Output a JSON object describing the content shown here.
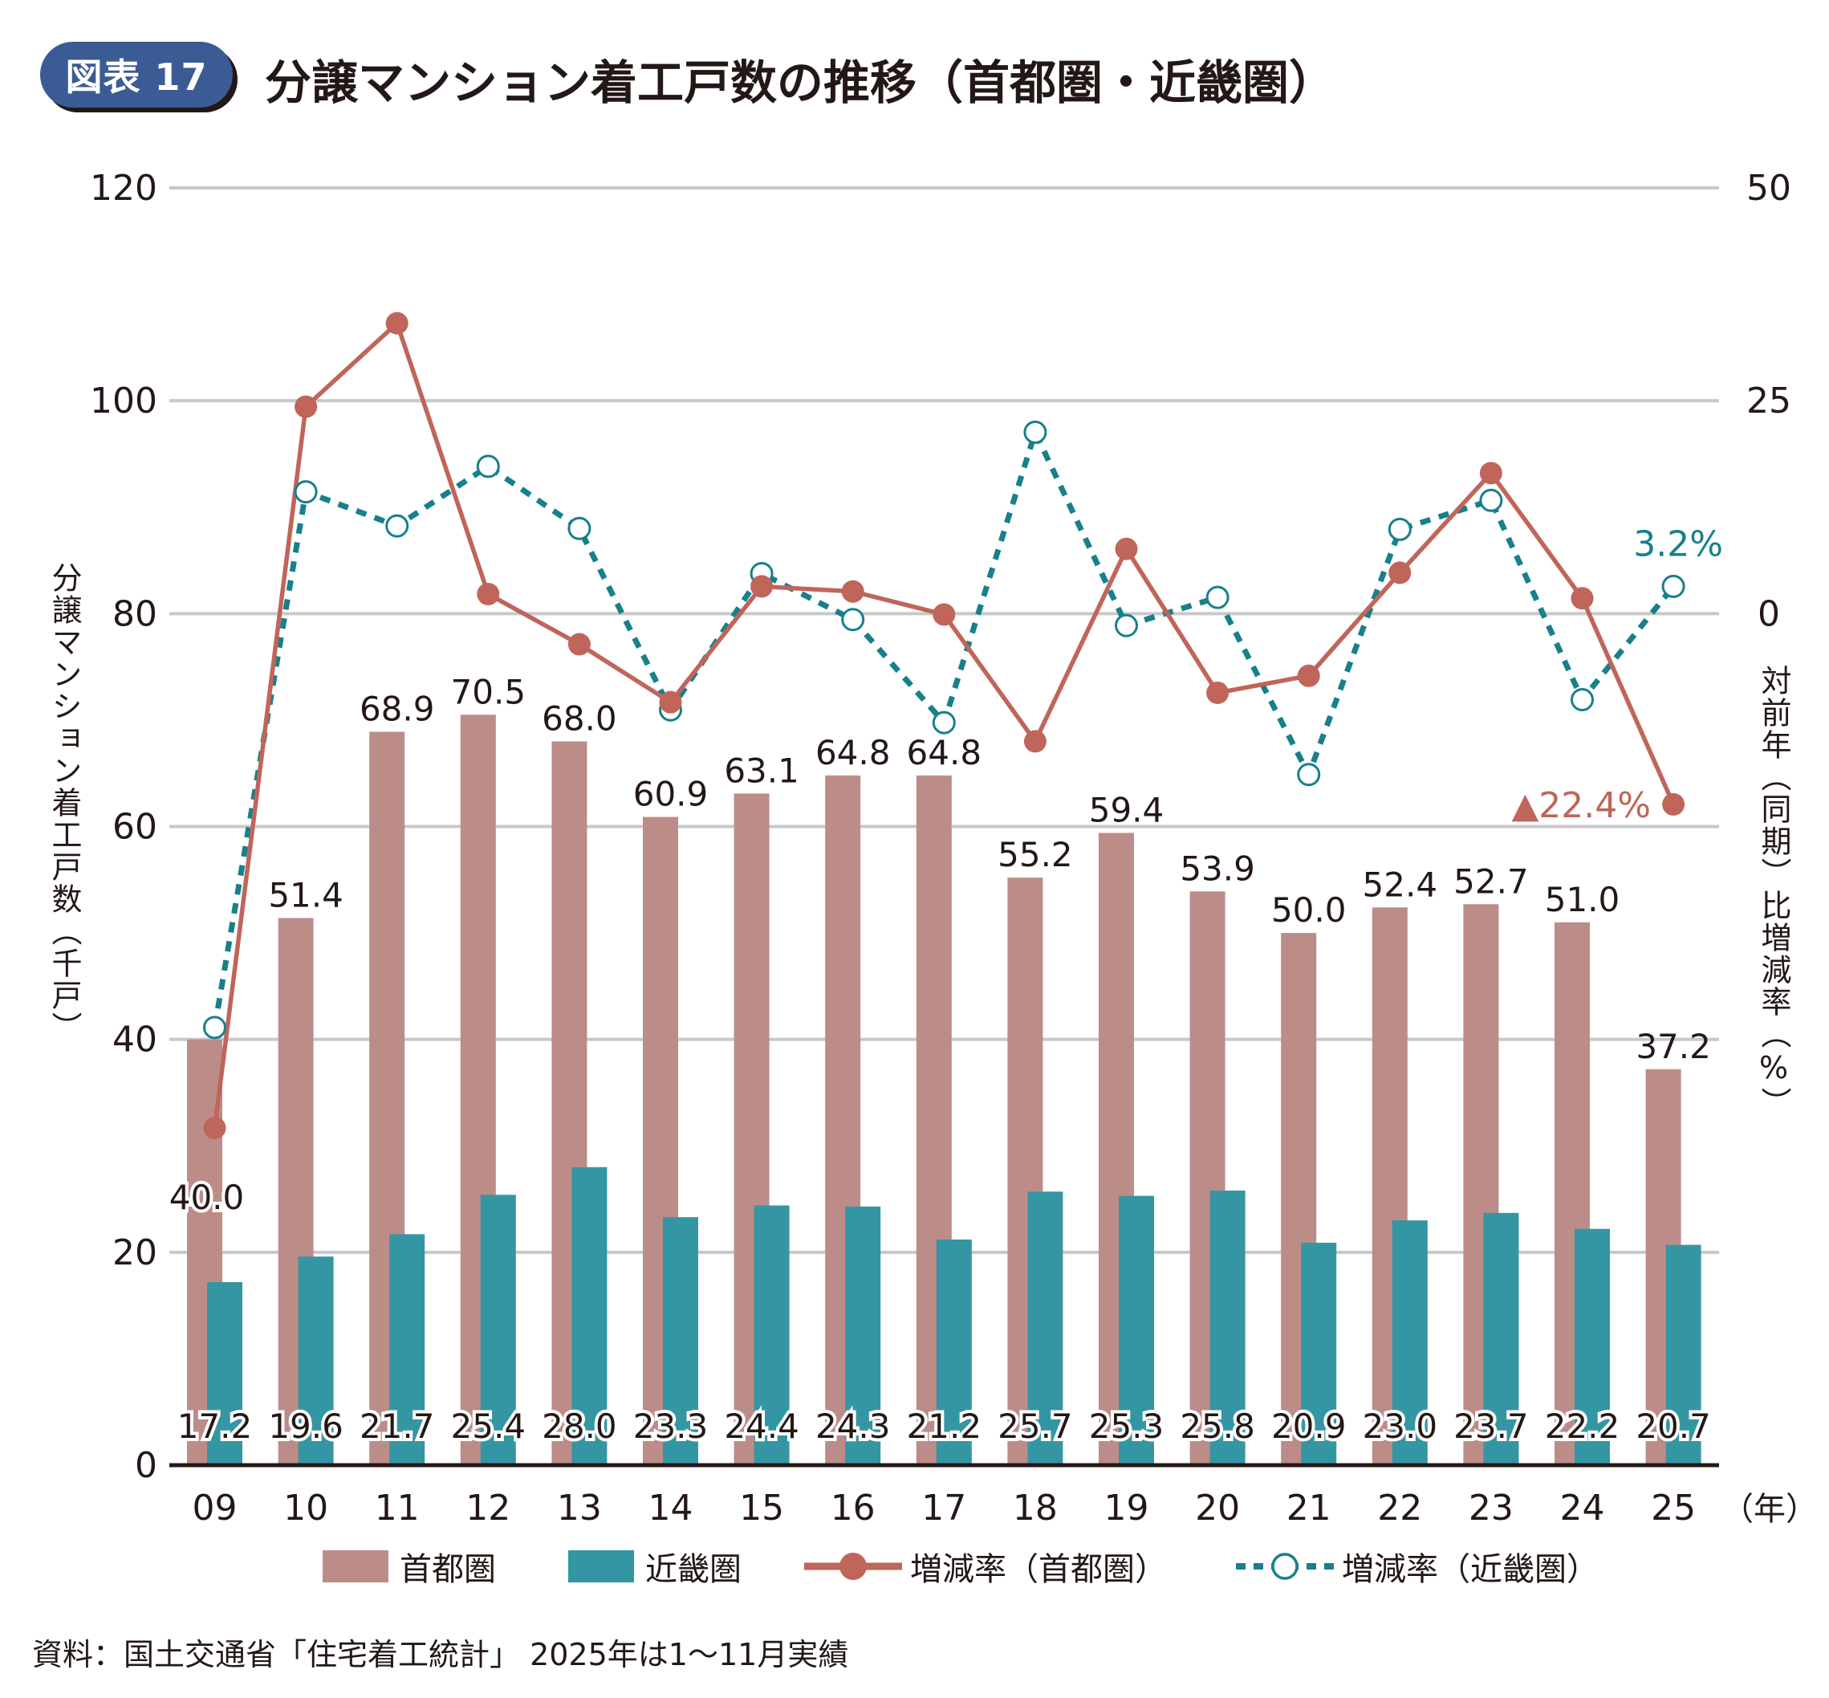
{
  "header": {
    "badge": "図表 17",
    "title": "分譲マンション着工戸数の推移（首都圏・近畿圏）"
  },
  "source_note": "資料：国土交通省「住宅着工統計」 2025年は1〜11月実績",
  "colors": {
    "shutoken_bar": "#bc8c89",
    "kinki_bar": "#3596a3",
    "shutoken_line": "#c0655a",
    "kinki_line": "#17808b",
    "grid": "#c8c8c8",
    "axis": "#231815",
    "badge": "#3a5b93"
  },
  "chart_data": {
    "type": "bar",
    "title": "分譲マンション着工戸数の推移（首都圏・近畿圏）",
    "categories": [
      "09",
      "10",
      "11",
      "12",
      "13",
      "14",
      "15",
      "16",
      "17",
      "18",
      "19",
      "20",
      "21",
      "22",
      "23",
      "24",
      "25"
    ],
    "x_unit_label": "（年）",
    "ylabel_left": "分譲マンション着工戸数（千戸）",
    "ylabel_right": "対前年（同期）比増減率（%）",
    "ylim_left": [
      0,
      120
    ],
    "yticks_left": [
      0,
      20,
      40,
      60,
      80,
      100,
      120
    ],
    "ylim_right": [
      -100,
      50
    ],
    "yticks_right": [
      0,
      25,
      50
    ],
    "grid": true,
    "legend_position": "bottom",
    "series": [
      {
        "name": "首都圏",
        "kind": "bar",
        "axis": "left",
        "values": [
          40.0,
          51.4,
          68.9,
          70.5,
          68.0,
          60.9,
          63.1,
          64.8,
          64.8,
          55.2,
          59.4,
          53.9,
          50.0,
          52.4,
          52.7,
          51.0,
          37.2
        ],
        "labels": [
          "40.0",
          "51.4",
          "68.9",
          "70.5",
          "68.0",
          "60.9",
          "63.1",
          "64.8",
          "64.8",
          "55.2",
          "59.4",
          "53.9",
          "50.0",
          "52.4",
          "52.7",
          "51.0",
          "37.2"
        ]
      },
      {
        "name": "近畿圏",
        "kind": "bar",
        "axis": "left",
        "values": [
          17.2,
          19.6,
          21.7,
          25.4,
          28.0,
          23.3,
          24.4,
          24.3,
          21.2,
          25.7,
          25.3,
          25.8,
          20.9,
          23.0,
          23.7,
          22.2,
          20.7
        ],
        "labels": [
          "17.2",
          "19.6",
          "21.7",
          "25.4",
          "28.0",
          "23.3",
          "24.4",
          "24.3",
          "21.2",
          "25.7",
          "25.3",
          "25.8",
          "20.9",
          "23.0",
          "23.7",
          "22.2",
          "20.7"
        ]
      },
      {
        "name": "増減率（首都圏）",
        "kind": "line",
        "axis": "right",
        "style": "solid-filled-marker",
        "values": [
          -60.4,
          24.3,
          34.1,
          2.3,
          -3.6,
          -10.4,
          3.2,
          2.6,
          -0.1,
          -15.0,
          7.6,
          -9.3,
          -7.3,
          4.8,
          16.5,
          1.8,
          -22.4
        ]
      },
      {
        "name": "増減率（近畿圏）",
        "kind": "line",
        "axis": "right",
        "style": "dotted-open-marker",
        "values": [
          -48.6,
          14.3,
          10.3,
          17.3,
          10.0,
          -11.3,
          4.7,
          -0.7,
          -12.8,
          21.3,
          -1.4,
          1.9,
          -18.9,
          9.9,
          13.3,
          -10.1,
          3.2
        ]
      }
    ],
    "annotations": [
      {
        "series": "増減率（首都圏）",
        "category": "25",
        "text": "▲22.4%"
      },
      {
        "series": "増減率（近畿圏）",
        "category": "25",
        "text": "3.2%"
      }
    ]
  }
}
